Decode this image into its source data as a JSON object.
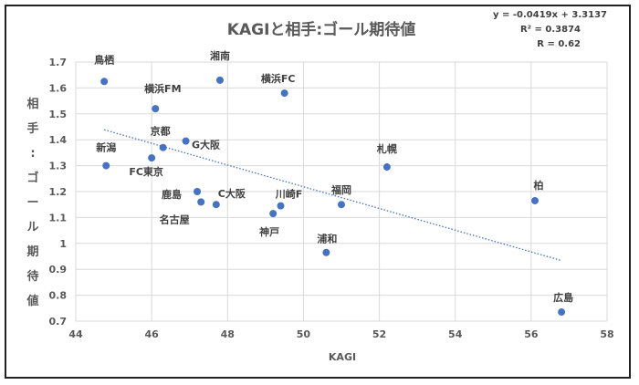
{
  "chart_data": {
    "type": "scatter",
    "title": "KAGIと相手:ゴール期待値",
    "xlabel": "KAGI",
    "ylabel": "相手:ゴール期待値",
    "xlim": [
      44,
      58
    ],
    "ylim": [
      0.7,
      1.7
    ],
    "xticks": [
      "44",
      "46",
      "48",
      "50",
      "52",
      "54",
      "56",
      "58"
    ],
    "yticks": [
      "0.7",
      "0.8",
      "0.9",
      "1",
      "1.1",
      "1.2",
      "1.3",
      "1.4",
      "1.5",
      "1.6",
      "1.7"
    ],
    "grid": true,
    "trendline": {
      "equation": "y = -0.0419x + 3.3137",
      "r_squared": "R² = 0.3874",
      "r": "R = 0.62",
      "slope": -0.0419,
      "intercept": 3.3137,
      "x_range": [
        44.75,
        56.8
      ]
    },
    "points": [
      {
        "label": "鳥栖",
        "x": 44.75,
        "y": 1.625
      },
      {
        "label": "湘南",
        "x": 47.8,
        "y": 1.63
      },
      {
        "label": "横浜FC",
        "x": 49.5,
        "y": 1.58
      },
      {
        "label": "横浜FM",
        "x": 46.1,
        "y": 1.52
      },
      {
        "label": "京都",
        "x": 46.3,
        "y": 1.37
      },
      {
        "label": "G大阪",
        "x": 46.9,
        "y": 1.395
      },
      {
        "label": "新潟",
        "x": 44.8,
        "y": 1.3
      },
      {
        "label": "FC東京",
        "x": 46.0,
        "y": 1.33
      },
      {
        "label": "札幌",
        "x": 52.2,
        "y": 1.295
      },
      {
        "label": "鹿島",
        "x": 47.2,
        "y": 1.2
      },
      {
        "label": "名古屋",
        "x": 47.3,
        "y": 1.16
      },
      {
        "label": "C大阪",
        "x": 47.7,
        "y": 1.15
      },
      {
        "label": "川崎F",
        "x": 49.4,
        "y": 1.145
      },
      {
        "label": "神戸",
        "x": 49.2,
        "y": 1.115
      },
      {
        "label": "福岡",
        "x": 51.0,
        "y": 1.15
      },
      {
        "label": "浦和",
        "x": 50.6,
        "y": 0.965
      },
      {
        "label": "柏",
        "x": 56.1,
        "y": 1.165
      },
      {
        "label": "広島",
        "x": 56.8,
        "y": 0.735
      }
    ],
    "colors": {
      "marker": "#4472c4",
      "trendline": "#4472c4",
      "grid": "#d9d9d9"
    }
  }
}
